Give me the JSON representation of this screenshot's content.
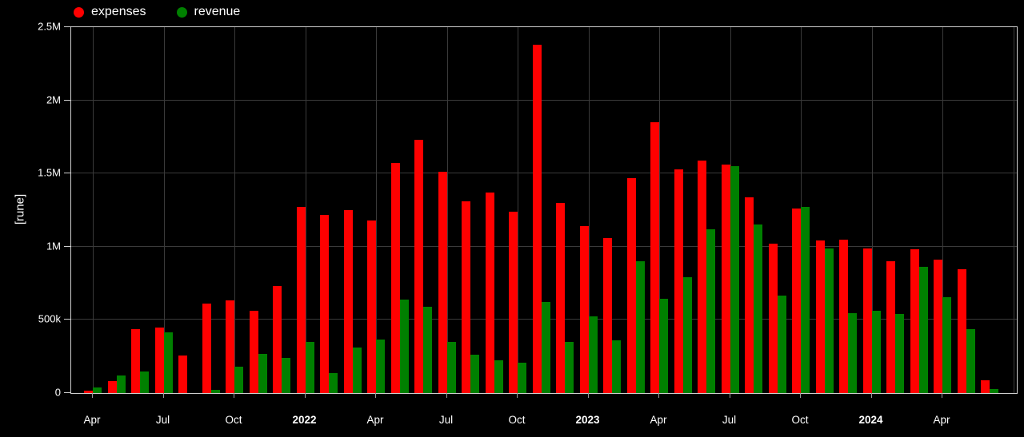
{
  "legend": [
    {
      "label": "expenses",
      "color": "#ff0000"
    },
    {
      "label": "revenue",
      "color": "#008000"
    }
  ],
  "y_axis": {
    "title": "[rune]"
  },
  "chart_data": {
    "type": "bar",
    "title": "",
    "xlabel": "",
    "ylabel": "[rune]",
    "ylim": [
      0,
      2500000
    ],
    "grid": true,
    "legend_position": "top-left",
    "background": "#000000",
    "categories": [
      "2021-04",
      "2021-05",
      "2021-06",
      "2021-07",
      "2021-08",
      "2021-09",
      "2021-10",
      "2021-11",
      "2021-12",
      "2022-01",
      "2022-02",
      "2022-03",
      "2022-04",
      "2022-05",
      "2022-06",
      "2022-07",
      "2022-08",
      "2022-09",
      "2022-10",
      "2022-11",
      "2022-12",
      "2023-01",
      "2023-02",
      "2023-03",
      "2023-04",
      "2023-05",
      "2023-06",
      "2023-07",
      "2023-08",
      "2023-09",
      "2023-10",
      "2023-11",
      "2023-12",
      "2024-01",
      "2024-02",
      "2024-03",
      "2024-04",
      "2024-05",
      "2024-06"
    ],
    "series": [
      {
        "name": "expenses",
        "color": "#ff0000",
        "values": [
          15000,
          80000,
          435000,
          450000,
          255000,
          610000,
          635000,
          565000,
          730000,
          1270000,
          1220000,
          1250000,
          1180000,
          1570000,
          1730000,
          1510000,
          1310000,
          1370000,
          1240000,
          2380000,
          1300000,
          1140000,
          1060000,
          1470000,
          1850000,
          1530000,
          1590000,
          1560000,
          1340000,
          1020000,
          1260000,
          1040000,
          1050000,
          990000,
          900000,
          980000,
          910000,
          845000,
          90000
        ]
      },
      {
        "name": "revenue",
        "color": "#008000",
        "values": [
          40000,
          120000,
          145000,
          415000,
          0,
          20000,
          180000,
          265000,
          240000,
          350000,
          135000,
          310000,
          365000,
          640000,
          590000,
          350000,
          260000,
          225000,
          210000,
          625000,
          350000,
          525000,
          360000,
          900000,
          645000,
          790000,
          1120000,
          1550000,
          1150000,
          665000,
          1270000,
          990000,
          545000,
          565000,
          540000,
          865000,
          655000,
          435000,
          25000
        ]
      }
    ],
    "y_ticks": [
      {
        "value": 0,
        "label": "0"
      },
      {
        "value": 500000,
        "label": "500k"
      },
      {
        "value": 1000000,
        "label": "1M"
      },
      {
        "value": 1500000,
        "label": "1.5M"
      },
      {
        "value": 2000000,
        "label": "2M"
      },
      {
        "value": 2500000,
        "label": "2.5M"
      }
    ],
    "x_ticks": [
      {
        "month_index": 0,
        "label": "Apr",
        "bold": false
      },
      {
        "month_index": 3,
        "label": "Jul",
        "bold": false
      },
      {
        "month_index": 6,
        "label": "Oct",
        "bold": false
      },
      {
        "month_index": 9,
        "label": "2022",
        "bold": true
      },
      {
        "month_index": 12,
        "label": "Apr",
        "bold": false
      },
      {
        "month_index": 15,
        "label": "Jul",
        "bold": false
      },
      {
        "month_index": 18,
        "label": "Oct",
        "bold": false
      },
      {
        "month_index": 21,
        "label": "2023",
        "bold": true
      },
      {
        "month_index": 24,
        "label": "Apr",
        "bold": false
      },
      {
        "month_index": 27,
        "label": "Jul",
        "bold": false
      },
      {
        "month_index": 30,
        "label": "Oct",
        "bold": false
      },
      {
        "month_index": 33,
        "label": "2024",
        "bold": true
      },
      {
        "month_index": 36,
        "label": "Apr",
        "bold": false
      },
      {
        "month_index": 39,
        "label": "",
        "bold": false
      }
    ]
  }
}
